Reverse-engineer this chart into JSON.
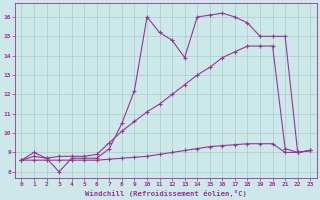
{
  "bg_color": "#cce8e8",
  "grid_color": "#aacccc",
  "line_color": "#993399",
  "xlabel": "Windchill (Refroidissement éolien,°C)",
  "xlim": [
    -0.5,
    23.5
  ],
  "ylim": [
    7.7,
    16.7
  ],
  "yticks": [
    8,
    9,
    10,
    11,
    12,
    13,
    14,
    15,
    16
  ],
  "xticks": [
    0,
    1,
    2,
    3,
    4,
    5,
    6,
    7,
    8,
    9,
    10,
    11,
    12,
    13,
    14,
    15,
    16,
    17,
    18,
    19,
    20,
    21,
    22,
    23
  ],
  "line1_x": [
    0,
    1,
    2,
    3,
    4,
    5,
    6,
    7,
    8,
    9,
    10,
    11,
    12,
    13,
    14,
    15,
    16,
    17,
    18,
    19,
    20,
    21,
    22,
    23
  ],
  "line1_y": [
    8.6,
    8.6,
    8.6,
    8.6,
    8.6,
    8.6,
    8.6,
    8.65,
    8.7,
    8.75,
    8.8,
    8.9,
    9.0,
    9.1,
    9.2,
    9.3,
    9.35,
    9.4,
    9.45,
    9.45,
    9.45,
    9.0,
    9.0,
    9.1
  ],
  "line2_x": [
    0,
    1,
    2,
    3,
    4,
    5,
    6,
    7,
    8,
    9,
    10,
    11,
    12,
    13,
    14,
    15,
    16,
    17,
    18,
    19,
    20,
    21,
    22,
    23
  ],
  "line2_y": [
    8.6,
    8.8,
    8.7,
    8.8,
    8.8,
    8.8,
    8.9,
    9.5,
    10.1,
    10.6,
    11.1,
    11.5,
    12.0,
    12.5,
    13.0,
    13.4,
    13.9,
    14.2,
    14.5,
    14.5,
    14.5,
    9.2,
    9.0,
    9.1
  ],
  "line3_x": [
    0,
    1,
    2,
    3,
    4,
    5,
    6,
    7,
    8,
    9,
    10,
    11,
    12,
    13,
    14,
    15,
    16,
    17,
    18,
    19,
    20,
    21,
    22,
    23
  ],
  "line3_y": [
    8.6,
    9.0,
    8.7,
    8.0,
    8.7,
    8.7,
    8.7,
    9.2,
    10.5,
    12.2,
    16.0,
    15.2,
    14.8,
    13.9,
    16.0,
    16.1,
    16.2,
    16.0,
    15.7,
    15.0,
    15.0,
    15.0,
    9.0,
    9.1
  ]
}
